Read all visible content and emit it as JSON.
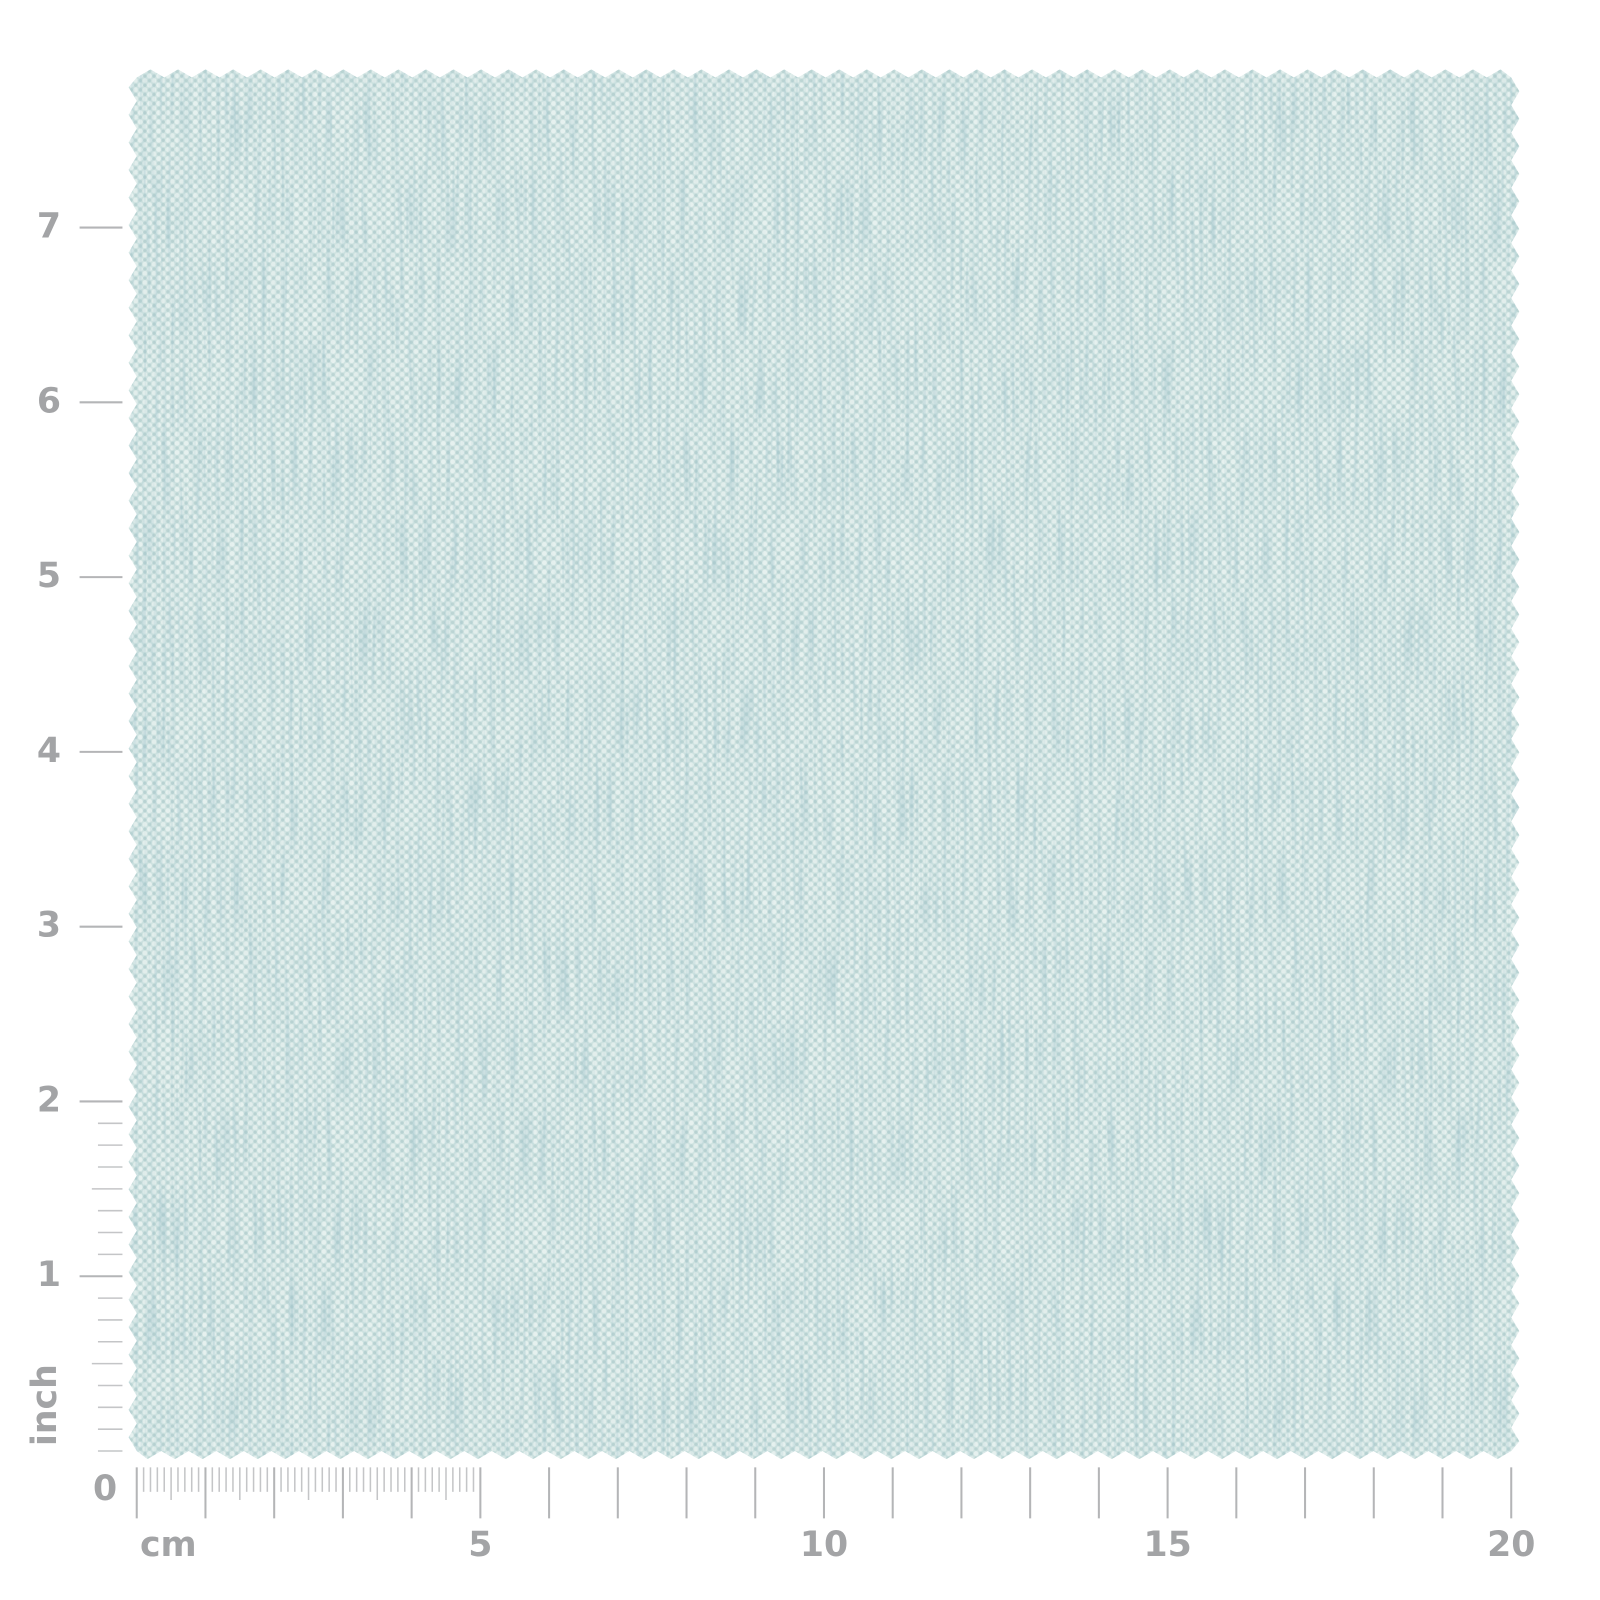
{
  "origin": "0",
  "cm_ruler": {
    "unit": "cm",
    "labels": [
      "5",
      "10",
      "15",
      "20"
    ]
  },
  "inch_ruler": {
    "unit": "inch",
    "labels": [
      "1",
      "2",
      "3",
      "4",
      "5",
      "6",
      "7"
    ]
  }
}
